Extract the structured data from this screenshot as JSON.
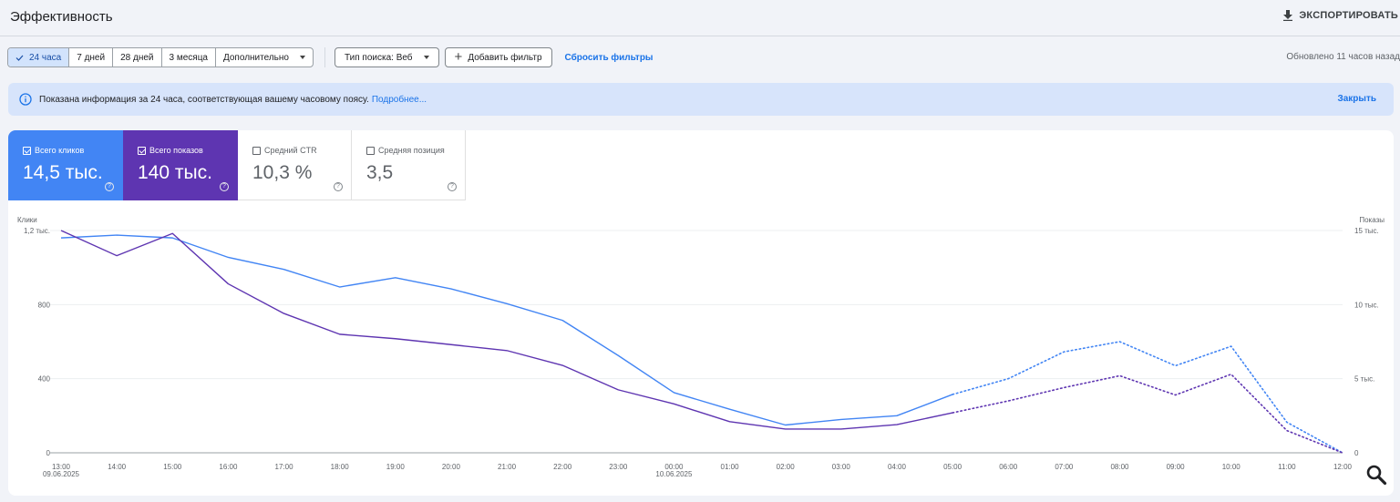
{
  "header": {
    "title": "Эффективность",
    "export_label": "ЭКСПОРТИРОВАТЬ"
  },
  "filters": {
    "periods": [
      "24 часа",
      "7 дней",
      "28 дней",
      "3 месяца"
    ],
    "active_period": "24 часа",
    "more_label": "Дополнительно",
    "search_type_label": "Тип поиска: Веб",
    "add_filter_label": "Добавить фильтр",
    "reset_label": "Сбросить фильтры",
    "updated_text": "Обновлено 11 часов назад"
  },
  "info": {
    "text": "Показана информация за 24 часа, соответствующая вашему часовому поясу.",
    "link": "Подробнее...",
    "close_label": "Закрыть"
  },
  "metrics": [
    {
      "label": "Всего кликов",
      "value": "14,5 тыс.",
      "checked": true,
      "color": "#4285f4"
    },
    {
      "label": "Всего показов",
      "value": "140 тыс.",
      "checked": true,
      "color": "#5e35b1"
    },
    {
      "label": "Средний CTR",
      "value": "10,3 %",
      "checked": false
    },
    {
      "label": "Средняя позиция",
      "value": "3,5",
      "checked": false
    }
  ],
  "chart_data": {
    "type": "line",
    "left_axis_label": "Клики",
    "right_axis_label": "Показы",
    "left_ticks": [
      "0",
      "400",
      "800",
      "1,2 тыс."
    ],
    "right_ticks": [
      "0",
      "5 тыс.",
      "10 тыс.",
      "15 тыс."
    ],
    "ylim_left": [
      0,
      1200
    ],
    "ylim_right": [
      0,
      15000
    ],
    "x": [
      "13:00",
      "14:00",
      "15:00",
      "16:00",
      "17:00",
      "18:00",
      "19:00",
      "20:00",
      "21:00",
      "22:00",
      "23:00",
      "00:00",
      "01:00",
      "02:00",
      "03:00",
      "04:00",
      "05:00",
      "06:00",
      "07:00",
      "08:00",
      "09:00",
      "10:00",
      "11:00",
      "12:00"
    ],
    "x_sublabels": {
      "13:00": "09.06.2025",
      "00:00": "10.06.2025"
    },
    "projected_from": "05:00",
    "grid": true,
    "series": [
      {
        "color": "#4285f4",
        "axis": "left",
        "values": [
          1160,
          1175,
          1160,
          1055,
          990,
          895,
          945,
          885,
          805,
          715,
          525,
          325,
          235,
          150,
          180,
          200,
          315,
          400,
          545,
          600,
          470,
          575,
          165,
          0
        ]
      },
      {
        "color": "#5e35b1",
        "axis": "right",
        "values": [
          15000,
          13300,
          14800,
          11400,
          9400,
          8000,
          7700,
          7300,
          6900,
          5900,
          4250,
          3300,
          2100,
          1600,
          1600,
          1900,
          2700,
          3500,
          4400,
          5200,
          3900,
          5300,
          1500,
          0
        ]
      }
    ]
  }
}
